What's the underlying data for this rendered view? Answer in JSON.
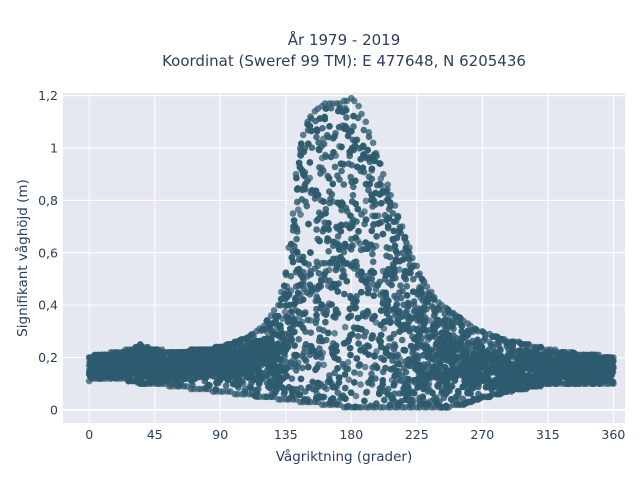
{
  "chart_data": {
    "type": "scatter",
    "title": "År 1979 - 2019",
    "subtitle": "Koordinat (Sweref 99 TM): E 477648, N 6205436",
    "xlabel": "Vågriktning (grader)",
    "ylabel": "Signifikant våghöjd (m)",
    "xlim": [
      -18,
      368
    ],
    "ylim": [
      -0.05,
      1.21
    ],
    "xticks": [
      0,
      45,
      90,
      135,
      180,
      225,
      270,
      315,
      360
    ],
    "xtick_labels": [
      "0",
      "45",
      "90",
      "135",
      "180",
      "225",
      "270",
      "315",
      "360"
    ],
    "yticks": [
      0,
      0.2,
      0.4,
      0.6,
      0.8,
      1.0,
      1.2
    ],
    "ytick_labels": [
      "0",
      "0,2",
      "0,4",
      "0,6",
      "0,8",
      "1",
      "1,2"
    ],
    "grid": true,
    "legend": "none",
    "background_color": "#e5e8f0",
    "marker_color": "#2e5a6e",
    "x": [
      0,
      2,
      4,
      6,
      8,
      10,
      12,
      15,
      18,
      20,
      22,
      25,
      27,
      30,
      32,
      35,
      37,
      40,
      42,
      45,
      47,
      50,
      52,
      55,
      57,
      60,
      62,
      65,
      67,
      70,
      72,
      75,
      77,
      80,
      82,
      85,
      87,
      90,
      92,
      95,
      97,
      100,
      102,
      105,
      107,
      110,
      112,
      115,
      117,
      120,
      122,
      125,
      127,
      130,
      132,
      135,
      137,
      140,
      142,
      145,
      147,
      150,
      152,
      155,
      157,
      160,
      162,
      165,
      167,
      170,
      172,
      175,
      177,
      180,
      182,
      185,
      187,
      190,
      192,
      195,
      197,
      200,
      202,
      205,
      207,
      210,
      212,
      215,
      217,
      220,
      222,
      225,
      227,
      230,
      232,
      235,
      237,
      240,
      242,
      245,
      247,
      250,
      252,
      255,
      257,
      260,
      262,
      265,
      267,
      270,
      272,
      275,
      277,
      280,
      282,
      285,
      287,
      290,
      292,
      295,
      297,
      300,
      302,
      305,
      307,
      310,
      312,
      315,
      317,
      320,
      322,
      325,
      327,
      330,
      332,
      335,
      337,
      340,
      342,
      345,
      347,
      350,
      352,
      355,
      357,
      360
    ],
    "y_min": [
      0.11,
      0.12,
      0.12,
      0.12,
      0.12,
      0.12,
      0.12,
      0.12,
      0.12,
      0.12,
      0.12,
      0.12,
      0.11,
      0.11,
      0.11,
      0.1,
      0.1,
      0.1,
      0.1,
      0.1,
      0.1,
      0.1,
      0.1,
      0.09,
      0.09,
      0.09,
      0.09,
      0.09,
      0.09,
      0.08,
      0.08,
      0.08,
      0.08,
      0.08,
      0.08,
      0.07,
      0.07,
      0.07,
      0.07,
      0.07,
      0.07,
      0.06,
      0.06,
      0.06,
      0.06,
      0.06,
      0.06,
      0.05,
      0.05,
      0.05,
      0.05,
      0.05,
      0.05,
      0.04,
      0.04,
      0.04,
      0.04,
      0.04,
      0.04,
      0.03,
      0.03,
      0.03,
      0.03,
      0.03,
      0.03,
      0.02,
      0.02,
      0.02,
      0.02,
      0.02,
      0.02,
      0.01,
      0.01,
      0.01,
      0.01,
      0.01,
      0.01,
      0.01,
      0.01,
      0.01,
      0.01,
      0.01,
      0.01,
      0.01,
      0.01,
      0.01,
      0.01,
      0.01,
      0.01,
      0.01,
      0.01,
      0.01,
      0.01,
      0.01,
      0.01,
      0.01,
      0.01,
      0.01,
      0.01,
      0.01,
      0.01,
      0.02,
      0.02,
      0.02,
      0.02,
      0.03,
      0.03,
      0.04,
      0.04,
      0.05,
      0.05,
      0.05,
      0.06,
      0.06,
      0.06,
      0.07,
      0.07,
      0.07,
      0.08,
      0.08,
      0.08,
      0.08,
      0.09,
      0.09,
      0.09,
      0.09,
      0.1,
      0.1,
      0.1,
      0.1,
      0.1,
      0.1,
      0.1,
      0.1,
      0.1,
      0.1,
      0.1,
      0.1,
      0.1,
      0.1,
      0.1,
      0.1,
      0.1,
      0.1,
      0.1,
      0.1,
      0.1,
      0.12
    ],
    "y_max": [
      0.2,
      0.2,
      0.21,
      0.21,
      0.21,
      0.21,
      0.21,
      0.22,
      0.22,
      0.22,
      0.22,
      0.23,
      0.23,
      0.23,
      0.24,
      0.25,
      0.24,
      0.24,
      0.23,
      0.23,
      0.23,
      0.23,
      0.22,
      0.22,
      0.22,
      0.22,
      0.22,
      0.22,
      0.22,
      0.23,
      0.23,
      0.23,
      0.23,
      0.23,
      0.23,
      0.23,
      0.24,
      0.24,
      0.24,
      0.25,
      0.25,
      0.26,
      0.26,
      0.27,
      0.27,
      0.28,
      0.29,
      0.3,
      0.31,
      0.32,
      0.34,
      0.36,
      0.38,
      0.4,
      0.45,
      0.52,
      0.62,
      0.75,
      0.9,
      1.0,
      1.05,
      1.1,
      1.12,
      1.14,
      1.15,
      1.16,
      1.17,
      1.17,
      1.17,
      1.17,
      1.17,
      1.18,
      1.18,
      1.19,
      1.18,
      1.16,
      1.13,
      1.1,
      1.06,
      1.02,
      0.98,
      0.94,
      0.9,
      0.86,
      0.82,
      0.78,
      0.74,
      0.7,
      0.66,
      0.62,
      0.58,
      0.55,
      0.52,
      0.49,
      0.47,
      0.45,
      0.43,
      0.41,
      0.4,
      0.39,
      0.38,
      0.37,
      0.36,
      0.35,
      0.34,
      0.33,
      0.32,
      0.31,
      0.3,
      0.3,
      0.29,
      0.29,
      0.28,
      0.28,
      0.27,
      0.27,
      0.26,
      0.26,
      0.26,
      0.26,
      0.25,
      0.25,
      0.25,
      0.24,
      0.24,
      0.24,
      0.23,
      0.23,
      0.23,
      0.23,
      0.22,
      0.22,
      0.22,
      0.22,
      0.22,
      0.21,
      0.21,
      0.21,
      0.21,
      0.21,
      0.21,
      0.21,
      0.2,
      0.2,
      0.2,
      0.2
    ],
    "y_typical": [
      0.17,
      0.17,
      0.17,
      0.17,
      0.17,
      0.17,
      0.17,
      0.17,
      0.17,
      0.17,
      0.17,
      0.17,
      0.17,
      0.17,
      0.17,
      0.17,
      0.17,
      0.17,
      0.17,
      0.17,
      0.17,
      0.17,
      0.17,
      0.17,
      0.17,
      0.17,
      0.17,
      0.17,
      0.17,
      0.18,
      0.18,
      0.18,
      0.18,
      0.18,
      0.18,
      0.18,
      0.18,
      0.18,
      0.18,
      0.18,
      0.18,
      0.18,
      0.18,
      0.19,
      0.19,
      0.19,
      0.19,
      0.19,
      0.2,
      0.2,
      0.2,
      0.21,
      0.21,
      0.22,
      0.23,
      0.25,
      0.28,
      0.32,
      0.38,
      0.44,
      0.48,
      0.51,
      0.53,
      0.54,
      0.55,
      0.56,
      0.56,
      0.56,
      0.56,
      0.56,
      0.56,
      0.56,
      0.56,
      0.55,
      0.54,
      0.53,
      0.52,
      0.51,
      0.5,
      0.48,
      0.46,
      0.44,
      0.42,
      0.4,
      0.38,
      0.36,
      0.34,
      0.32,
      0.31,
      0.3,
      0.28,
      0.27,
      0.26,
      0.25,
      0.24,
      0.23,
      0.22,
      0.21,
      0.2,
      0.2,
      0.19,
      0.19,
      0.18,
      0.18,
      0.18,
      0.17,
      0.17,
      0.17,
      0.17,
      0.17,
      0.17,
      0.16,
      0.16,
      0.16,
      0.16,
      0.16,
      0.16,
      0.16,
      0.16,
      0.16,
      0.16,
      0.16,
      0.16,
      0.16,
      0.16,
      0.16,
      0.16,
      0.16,
      0.16,
      0.16,
      0.16,
      0.16,
      0.16,
      0.16,
      0.16,
      0.16,
      0.16,
      0.16,
      0.16,
      0.16,
      0.16,
      0.16,
      0.16,
      0.16,
      0.16,
      0.16
    ]
  }
}
